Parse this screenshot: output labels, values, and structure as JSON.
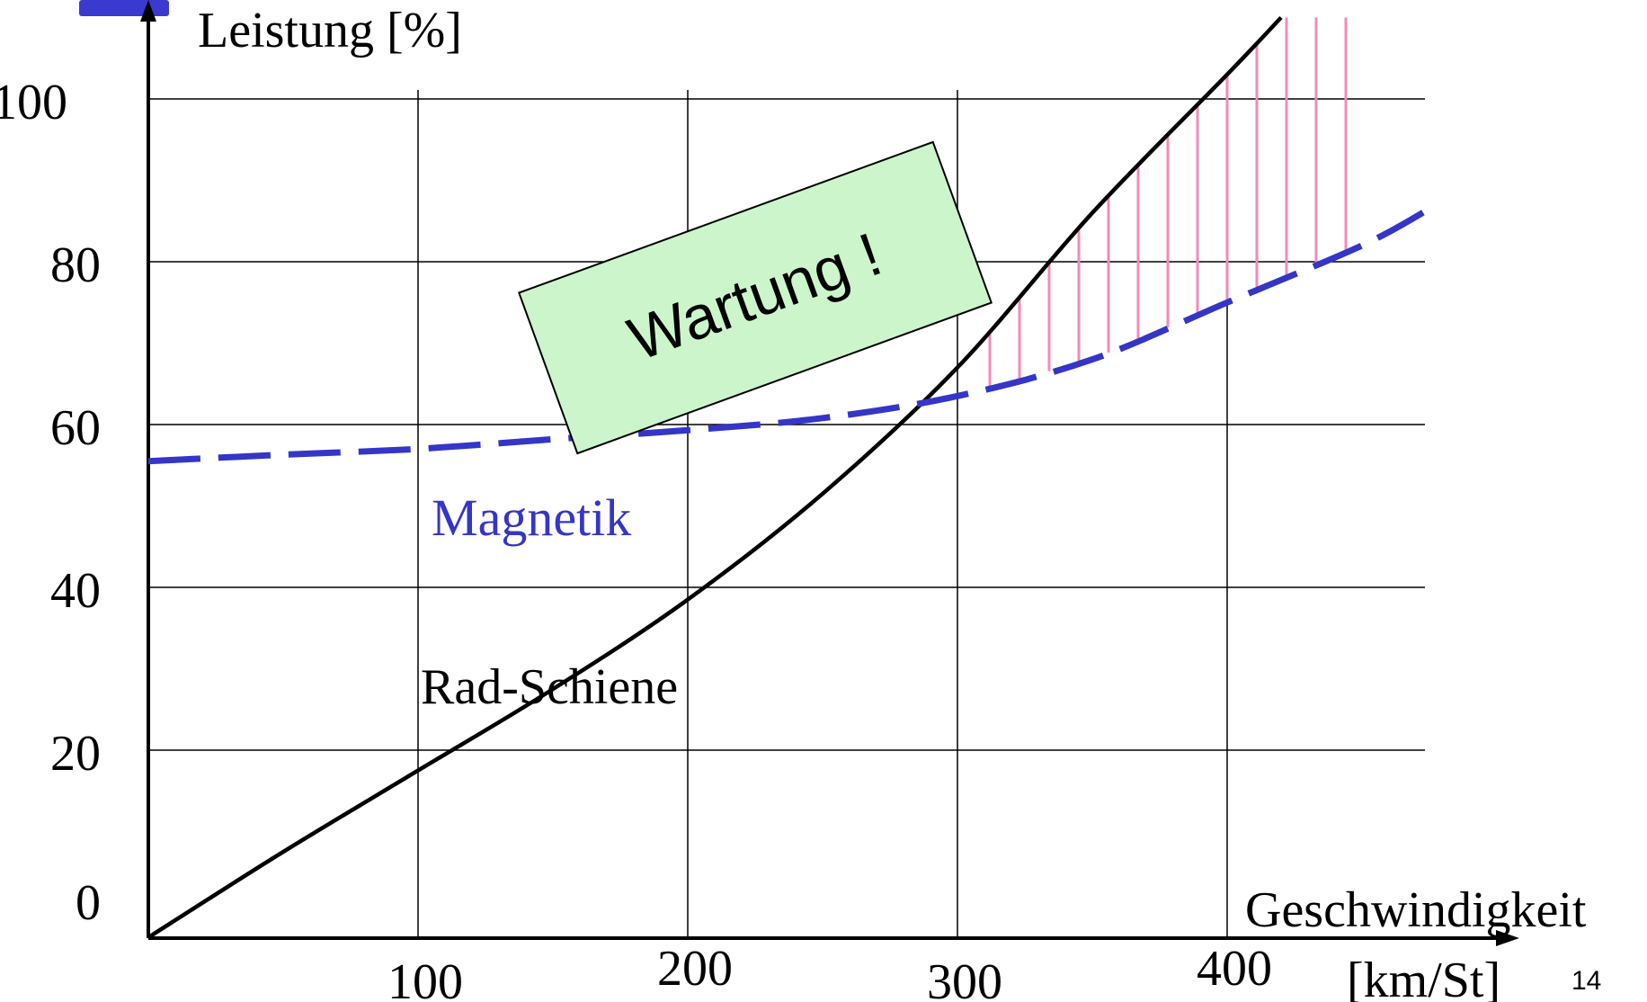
{
  "slide_number": "14",
  "colors": {
    "rad_schiene": "#000000",
    "magnetik": "#3535c8",
    "hatch": "#f48ab8",
    "box_fill": "#ccf5cc",
    "corner_accent": "#3a3ad0"
  },
  "chart_data": {
    "type": "line",
    "title": "",
    "ylabel": "Leistung [%]",
    "xlabel": "Geschwindigkeit",
    "xunit": "[km/St]",
    "xlim": [
      0,
      500
    ],
    "ylim": [
      -5,
      112
    ],
    "x_ticks": [
      100,
      200,
      300,
      400
    ],
    "x_tick_labels": [
      "100",
      "200",
      "300",
      "400"
    ],
    "y_ticks": [
      0,
      20,
      40,
      60,
      80,
      100
    ],
    "y_tick_labels": [
      "0",
      "20",
      "40",
      "60",
      "80",
      "100"
    ],
    "grid": true,
    "series": [
      {
        "name": "Rad-Schiene",
        "style": "solid",
        "x": [
          0,
          50,
          100,
          150,
          200,
          250,
          300,
          350,
          400,
          420
        ],
        "y": [
          -3,
          7.5,
          17.5,
          27.5,
          38.5,
          51.5,
          67,
          86,
          103,
          110
        ]
      },
      {
        "name": "Magnetik",
        "style": "dashed",
        "x": [
          0,
          50,
          100,
          150,
          200,
          250,
          300,
          350,
          400,
          450,
          475
        ],
        "y": [
          55.5,
          56.3,
          57,
          58.2,
          59.3,
          60.8,
          63.5,
          68,
          75,
          82,
          86.5
        ]
      }
    ],
    "annotations": [
      {
        "text": "Wartung !",
        "type": "rotated-box"
      },
      {
        "text": "Magnetik",
        "type": "series-label"
      },
      {
        "text": "Rad-Schiene",
        "type": "series-label"
      }
    ],
    "hatched_region": {
      "between": [
        "Magnetik",
        "Rad-Schiene"
      ],
      "x_from": 312,
      "x_to": 445
    }
  }
}
